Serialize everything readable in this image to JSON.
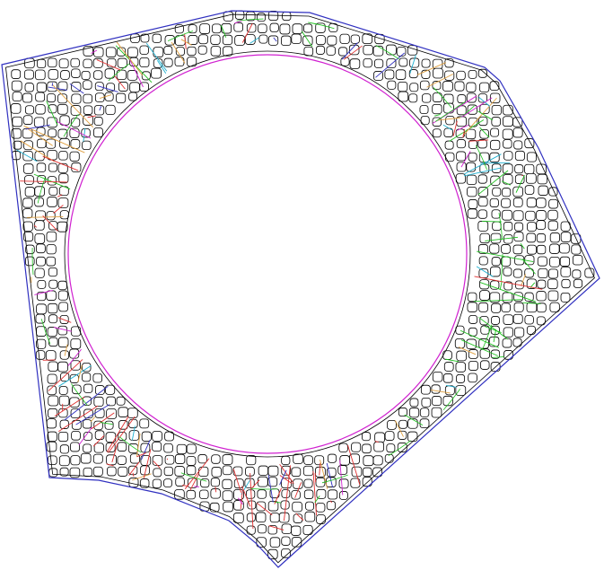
{
  "diagram": {
    "kind": "finite-element-mesh",
    "colors": {
      "background": "#ffffff",
      "cell_outline": "#000000",
      "boundary": "#3030c0",
      "inner_boundary": "#d020d0",
      "accent_green": "#20c020",
      "accent_red": "#e03030",
      "accent_cyan": "#20b0d0",
      "accent_orange": "#e0a040"
    }
  }
}
